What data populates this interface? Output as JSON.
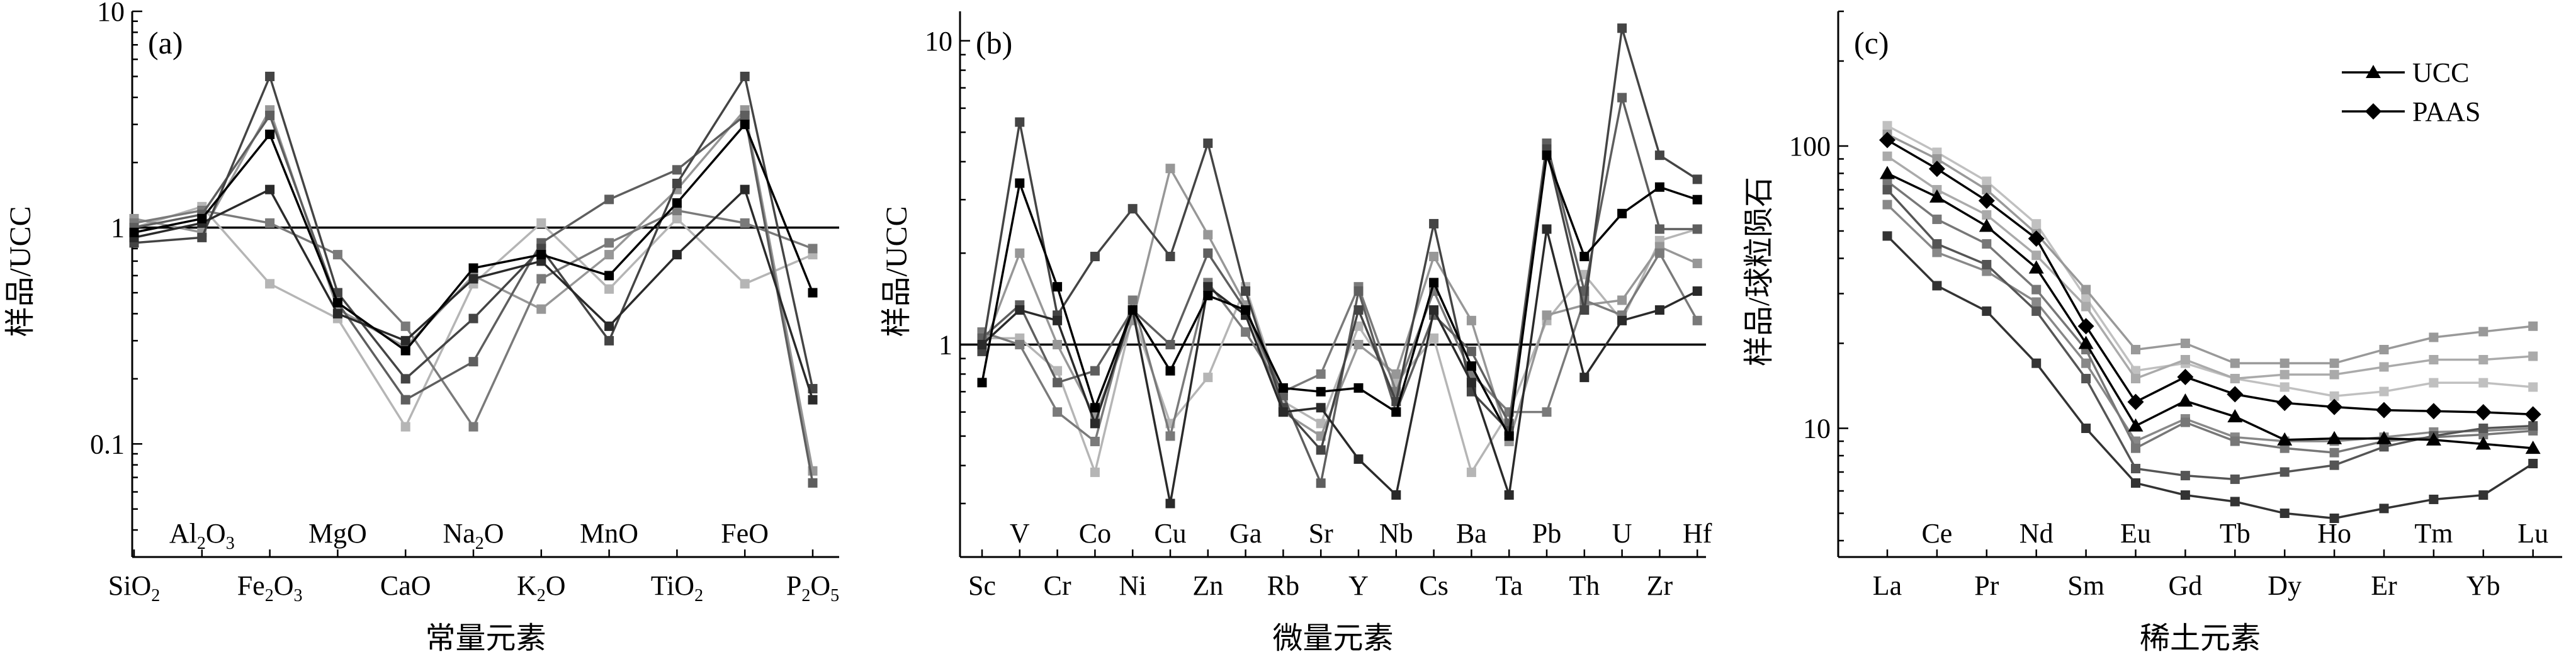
{
  "chart_data": [
    {
      "panel": "(a)",
      "type": "line",
      "scale": "log",
      "xlabel": "常量元素",
      "ylabel": "样品/UCC",
      "ylim": [
        0.03,
        10
      ],
      "yticks": [
        {
          "v": 10,
          "label": "10"
        },
        {
          "v": 1,
          "label": "1"
        },
        {
          "v": 0.1,
          "label": "0.1"
        }
      ],
      "reference_line": 1,
      "labels_bottom": [
        {
          "i": 0,
          "base": "SiO",
          "sub": "2"
        },
        {
          "i": 2,
          "base": "Fe",
          "sub": "2",
          "base2": "O",
          "sub2": "3"
        },
        {
          "i": 4,
          "base": "CaO"
        },
        {
          "i": 6,
          "base": "K",
          "sub": "2",
          "base2": "O"
        },
        {
          "i": 8,
          "base": "TiO",
          "sub": "2"
        },
        {
          "i": 10,
          "base": "P",
          "sub": "2",
          "base2": "O",
          "sub2": "5"
        }
      ],
      "labels_top": [
        {
          "i": 1,
          "base": "Al",
          "sub": "2",
          "base2": "O",
          "sub2": "3"
        },
        {
          "i": 3,
          "base": "MgO"
        },
        {
          "i": 5,
          "base": "Na",
          "sub": "2",
          "base2": "O"
        },
        {
          "i": 7,
          "base": "MnO"
        },
        {
          "i": 9,
          "base": "FeO"
        }
      ],
      "categories": [
        "SiO2",
        "Al2O3",
        "Fe2O3",
        "MgO",
        "CaO",
        "Na2O",
        "K2O",
        "MnO",
        "TiO2",
        "FeO",
        "P2O5"
      ],
      "series": [
        {
          "color": "#000000",
          "values": [
            0.95,
            1.1,
            2.7,
            0.45,
            0.27,
            0.65,
            0.75,
            0.6,
            1.3,
            3.0,
            0.5
          ]
        },
        {
          "color": "#2a2a2a",
          "values": [
            0.9,
            1.05,
            1.5,
            0.4,
            0.3,
            0.58,
            0.7,
            0.35,
            0.75,
            1.5,
            0.16
          ]
        },
        {
          "color": "#444444",
          "values": [
            0.85,
            0.9,
            5.0,
            0.5,
            0.2,
            0.38,
            0.8,
            0.3,
            1.6,
            5.0,
            0.18
          ]
        },
        {
          "color": "#5e5e5e",
          "values": [
            1.0,
            1.15,
            3.3,
            0.45,
            0.16,
            0.24,
            0.85,
            1.35,
            1.85,
            3.3,
            0.066
          ]
        },
        {
          "color": "#7a7a7a",
          "values": [
            1.05,
            1.2,
            1.05,
            0.75,
            0.35,
            0.12,
            0.58,
            0.85,
            1.2,
            1.05,
            0.8
          ]
        },
        {
          "color": "#979797",
          "values": [
            1.1,
            0.95,
            3.5,
            0.42,
            0.28,
            0.6,
            0.42,
            0.75,
            1.5,
            3.5,
            0.075
          ]
        },
        {
          "color": "#b5b5b5",
          "values": [
            1.0,
            1.25,
            0.55,
            0.38,
            0.12,
            0.55,
            1.05,
            0.52,
            1.1,
            0.55,
            0.75
          ]
        }
      ]
    },
    {
      "panel": "(b)",
      "type": "line",
      "scale": "log",
      "xlabel": "微量元素",
      "ylabel": "样品/UCC",
      "ylim": [
        0.2,
        12
      ],
      "yticks": [
        {
          "v": 10,
          "label": "10"
        },
        {
          "v": 1,
          "label": "1"
        }
      ],
      "reference_line": 1,
      "labels_bottom": [
        {
          "i": 0,
          "base": "Sc"
        },
        {
          "i": 2,
          "base": "Cr"
        },
        {
          "i": 4,
          "base": "Ni"
        },
        {
          "i": 6,
          "base": "Zn"
        },
        {
          "i": 8,
          "base": "Rb"
        },
        {
          "i": 10,
          "base": "Y"
        },
        {
          "i": 12,
          "base": "Cs"
        },
        {
          "i": 14,
          "base": "Ta"
        },
        {
          "i": 16,
          "base": "Th"
        },
        {
          "i": 18,
          "base": "Zr"
        }
      ],
      "labels_top": [
        {
          "i": 1,
          "base": "V"
        },
        {
          "i": 3,
          "base": "Co"
        },
        {
          "i": 5,
          "base": "Cu"
        },
        {
          "i": 7,
          "base": "Ga"
        },
        {
          "i": 9,
          "base": "Sr"
        },
        {
          "i": 11,
          "base": "Nb"
        },
        {
          "i": 13,
          "base": "Ba"
        },
        {
          "i": 15,
          "base": "Pb"
        },
        {
          "i": 17,
          "base": "U"
        },
        {
          "i": 19,
          "base": "Hf"
        }
      ],
      "categories": [
        "Sc",
        "V",
        "Cr",
        "Co",
        "Ni",
        "Cu",
        "Zn",
        "Ga",
        "Rb",
        "Sr",
        "Y",
        "Nb",
        "Cs",
        "Ba",
        "Ta",
        "Pb",
        "Th",
        "U",
        "Zr",
        "Hf"
      ],
      "series": [
        {
          "color": "#000000",
          "values": [
            0.75,
            3.4,
            1.55,
            0.62,
            1.3,
            0.82,
            1.45,
            1.3,
            0.72,
            0.7,
            0.72,
            0.6,
            1.6,
            0.85,
            0.5,
            4.2,
            1.95,
            2.7,
            3.3,
            3.0
          ]
        },
        {
          "color": "#2a2a2a",
          "values": [
            1.0,
            1.3,
            1.2,
            0.55,
            1.3,
            0.3,
            1.55,
            1.25,
            0.6,
            0.62,
            0.42,
            0.32,
            1.3,
            0.75,
            0.32,
            2.4,
            0.78,
            1.2,
            1.3,
            1.5
          ]
        },
        {
          "color": "#444444",
          "values": [
            0.95,
            5.4,
            1.25,
            1.95,
            2.8,
            1.95,
            4.6,
            1.5,
            0.62,
            0.45,
            1.3,
            0.65,
            2.5,
            0.7,
            0.52,
            4.4,
            1.3,
            11.0,
            4.2,
            3.5
          ]
        },
        {
          "color": "#5e5e5e",
          "values": [
            1.05,
            1.35,
            0.75,
            0.82,
            1.3,
            1.0,
            2.0,
            1.3,
            0.68,
            0.35,
            1.5,
            0.6,
            1.25,
            0.95,
            0.55,
            4.6,
            1.5,
            6.5,
            2.4,
            2.4
          ]
        },
        {
          "color": "#7a7a7a",
          "values": [
            1.1,
            1.0,
            0.6,
            0.48,
            1.4,
            0.5,
            1.6,
            1.1,
            0.7,
            0.8,
            1.55,
            0.7,
            1.5,
            0.8,
            0.6,
            0.6,
            1.4,
            1.25,
            2.0,
            1.2
          ]
        },
        {
          "color": "#979797",
          "values": [
            0.95,
            2.0,
            1.0,
            0.58,
            1.2,
            3.8,
            2.3,
            1.35,
            0.6,
            0.5,
            1.0,
            0.8,
            1.95,
            1.2,
            0.48,
            1.25,
            1.35,
            1.4,
            2.1,
            1.85
          ]
        },
        {
          "color": "#b5b5b5",
          "values": [
            1.05,
            1.05,
            0.82,
            0.38,
            1.25,
            0.55,
            0.78,
            1.55,
            0.65,
            0.55,
            1.15,
            0.75,
            1.05,
            0.38,
            0.6,
            1.2,
            1.7,
            1.2,
            2.2,
            2.4
          ]
        }
      ]
    },
    {
      "panel": "(c)",
      "type": "line",
      "scale": "log",
      "xlabel": "稀土元素",
      "ylabel": "样品/球粒陨石",
      "ylim": [
        3.5,
        300
      ],
      "yticks": [
        {
          "v": 100,
          "label": "100"
        },
        {
          "v": 10,
          "label": "10"
        }
      ],
      "labels_bottom": [
        {
          "i": 0,
          "base": "La"
        },
        {
          "i": 2,
          "base": "Pr"
        },
        {
          "i": 4,
          "base": "Sm"
        },
        {
          "i": 6,
          "base": "Gd"
        },
        {
          "i": 8,
          "base": "Dy"
        },
        {
          "i": 10,
          "base": "Er"
        },
        {
          "i": 12,
          "base": "Yb"
        }
      ],
      "labels_top": [
        {
          "i": 1,
          "base": "Ce"
        },
        {
          "i": 3,
          "base": "Nd"
        },
        {
          "i": 5,
          "base": "Eu"
        },
        {
          "i": 7,
          "base": "Tb"
        },
        {
          "i": 9,
          "base": "Ho"
        },
        {
          "i": 11,
          "base": "Tm"
        },
        {
          "i": 13,
          "base": "Lu"
        }
      ],
      "legend": [
        {
          "label": "UCC",
          "marker": "triangle"
        },
        {
          "label": "PAAS",
          "marker": "diamond"
        }
      ],
      "categories": [
        "La",
        "Ce",
        "Pr",
        "Nd",
        "Sm",
        "Eu",
        "Gd",
        "Tb",
        "Dy",
        "Ho",
        "Er",
        "Tm",
        "Yb",
        "Lu"
      ],
      "series": [
        {
          "name": "UCC",
          "marker": "triangle",
          "color": "#000000",
          "values": [
            80,
            66,
            52,
            37,
            20,
            10.2,
            12.5,
            11.0,
            9.1,
            9.2,
            9.2,
            9.1,
            8.8,
            8.5
          ]
        },
        {
          "name": "PAAS",
          "marker": "diamond",
          "color": "#000000",
          "values": [
            105,
            83,
            64,
            47,
            23,
            12.4,
            15.2,
            13.2,
            12.3,
            11.9,
            11.6,
            11.5,
            11.4,
            11.2
          ]
        },
        {
          "marker": "square",
          "color": "#333333",
          "values": [
            48,
            32,
            26,
            17,
            10,
            6.4,
            5.8,
            5.5,
            5.0,
            4.8,
            5.2,
            5.6,
            5.8,
            7.5
          ]
        },
        {
          "marker": "square",
          "color": "#555555",
          "values": [
            70,
            45,
            38,
            26,
            15,
            7.2,
            6.8,
            6.6,
            7.0,
            7.4,
            8.6,
            9.4,
            10.0,
            10.2
          ]
        },
        {
          "marker": "square",
          "color": "#777777",
          "values": [
            75,
            55,
            45,
            31,
            19,
            8.5,
            10.5,
            9.0,
            8.5,
            8.2,
            9.0,
            9.3,
            9.5,
            9.8
          ]
        },
        {
          "marker": "square",
          "color": "#999999",
          "values": [
            110,
            90,
            70,
            49,
            31,
            19.0,
            20.0,
            17.0,
            17.0,
            17.0,
            19.0,
            21.0,
            22.0,
            23.0
          ]
        },
        {
          "marker": "square",
          "color": "#aaaaaa",
          "values": [
            92,
            70,
            57,
            41,
            27,
            15.0,
            17.5,
            15.0,
            15.5,
            15.5,
            16.5,
            17.5,
            17.5,
            18.0
          ]
        },
        {
          "marker": "square",
          "color": "#c0c0c0",
          "values": [
            118,
            95,
            75,
            53,
            29,
            16.0,
            17.0,
            15.0,
            14.0,
            13.0,
            13.5,
            14.5,
            14.5,
            14.0
          ]
        },
        {
          "marker": "square",
          "color": "#888888",
          "values": [
            62,
            42,
            36,
            28,
            17,
            9.0,
            10.8,
            9.3,
            9.0,
            9.0,
            9.3,
            9.7,
            9.8,
            10.0
          ]
        }
      ]
    }
  ]
}
